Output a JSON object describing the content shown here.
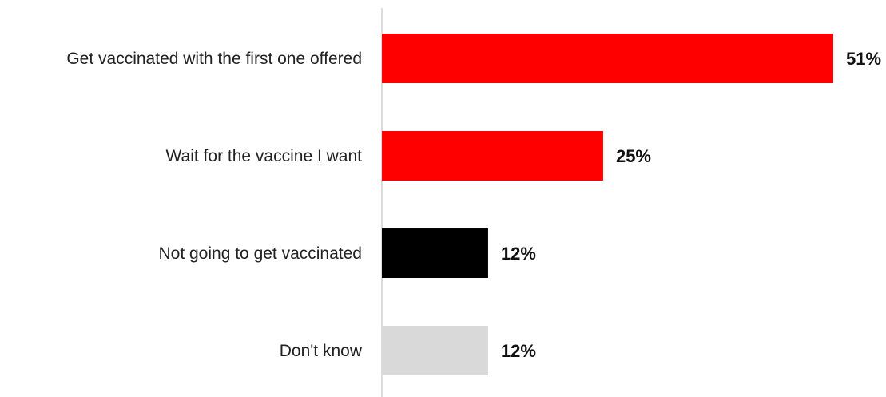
{
  "chart_data": {
    "type": "bar",
    "orientation": "horizontal",
    "categories": [
      "Get vaccinated with the first one offered",
      "Wait for the vaccine I want",
      "Not going to get vaccinated",
      "Don't know"
    ],
    "values": [
      51,
      25,
      12,
      12
    ],
    "value_labels": [
      "51%",
      "25%",
      "12%",
      "12%"
    ],
    "colors": [
      "#ff0000",
      "#ff0000",
      "#000000",
      "#d9d9d9"
    ],
    "unit": "%",
    "xlim": [
      0,
      51
    ],
    "grid": false,
    "legend": "none",
    "title": "",
    "xlabel": "",
    "ylabel": ""
  }
}
